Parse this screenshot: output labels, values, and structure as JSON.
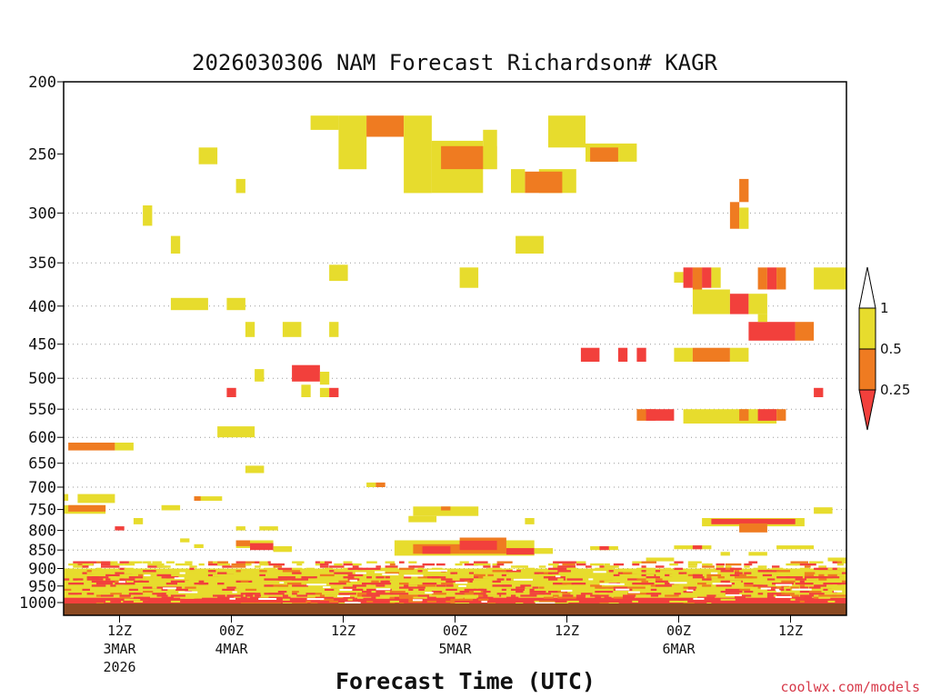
{
  "chart_data": {
    "type": "heatmap",
    "title": "2026030306 NAM Forecast Richardson# KAGR",
    "xlabel": "Forecast Time (UTC)",
    "ylabel": "",
    "credit": "coolwx.com/models",
    "colors": {
      "ri_025_05": "#ef7b21",
      "ri_05_1": "#e7dc2d",
      "ri_lt_025": "#f2403c",
      "ground": "#8b4a22",
      "credit": "#d73a4a"
    },
    "y_axis": {
      "type": "pressure_hPa",
      "range": [
        1040,
        200
      ],
      "ticks": [
        200,
        250,
        300,
        350,
        400,
        450,
        500,
        550,
        600,
        650,
        700,
        750,
        800,
        850,
        900,
        950,
        1000
      ],
      "gridlines": [
        300,
        350,
        400,
        450,
        500,
        550,
        600,
        650,
        700,
        750,
        800,
        850,
        900,
        950,
        1000
      ]
    },
    "x_axis": {
      "unit": "forecast_hour",
      "range": [
        0,
        84
      ],
      "ticks": [
        {
          "hour": 6,
          "label": "12Z",
          "date": "3MAR",
          "year": "2026"
        },
        {
          "hour": 18,
          "label": "00Z",
          "date": "4MAR",
          "year": ""
        },
        {
          "hour": 30,
          "label": "12Z",
          "date": "",
          "year": ""
        },
        {
          "hour": 42,
          "label": "00Z",
          "date": "5MAR",
          "year": ""
        },
        {
          "hour": 54,
          "label": "12Z",
          "date": "",
          "year": ""
        },
        {
          "hour": 66,
          "label": "00Z",
          "date": "6MAR",
          "year": ""
        },
        {
          "hour": 78,
          "label": "12Z",
          "date": "",
          "year": ""
        }
      ]
    },
    "legend": {
      "entries": [
        "1",
        "0.5",
        "0.25"
      ],
      "meaning": "Richardson number categories"
    },
    "patches": [
      {
        "cat": "y",
        "h0": 26.5,
        "h1": 29.5,
        "p0": 222,
        "p1": 232
      },
      {
        "cat": "y",
        "h0": 29.5,
        "h1": 32.5,
        "p0": 222,
        "p1": 262
      },
      {
        "cat": "o",
        "h0": 32.5,
        "h1": 36.5,
        "p0": 222,
        "p1": 237
      },
      {
        "cat": "y",
        "h0": 36.5,
        "h1": 39.5,
        "p0": 222,
        "p1": 282
      },
      {
        "cat": "y",
        "h0": 39.5,
        "h1": 45,
        "p0": 240,
        "p1": 282
      },
      {
        "cat": "o",
        "h0": 40.5,
        "h1": 46.5,
        "p0": 244,
        "p1": 262
      },
      {
        "cat": "y",
        "h0": 45,
        "h1": 46.5,
        "p0": 232,
        "p1": 262
      },
      {
        "cat": "y",
        "h0": 52,
        "h1": 56,
        "p0": 222,
        "p1": 245
      },
      {
        "cat": "y",
        "h0": 51,
        "h1": 55,
        "p0": 262,
        "p1": 282
      },
      {
        "cat": "o",
        "h0": 49.5,
        "h1": 53.5,
        "p0": 264,
        "p1": 282
      },
      {
        "cat": "y",
        "h0": 48,
        "h1": 49.5,
        "p0": 262,
        "p1": 282
      },
      {
        "cat": "y",
        "h0": 56,
        "h1": 61.5,
        "p0": 242,
        "p1": 256
      },
      {
        "cat": "o",
        "h0": 56.5,
        "h1": 59.5,
        "p0": 245,
        "p1": 256
      },
      {
        "cat": "y",
        "h0": 14.5,
        "h1": 16.5,
        "p0": 245,
        "p1": 258
      },
      {
        "cat": "y",
        "h0": 18.5,
        "h1": 19.5,
        "p0": 270,
        "p1": 282
      },
      {
        "cat": "y",
        "h0": 8.5,
        "h1": 9.5,
        "p0": 293,
        "p1": 312
      },
      {
        "cat": "y",
        "h0": 11.5,
        "h1": 12.5,
        "p0": 322,
        "p1": 340
      },
      {
        "cat": "y",
        "h0": 48.5,
        "h1": 51.5,
        "p0": 322,
        "p1": 340
      },
      {
        "cat": "y",
        "h0": 28.5,
        "h1": 30.5,
        "p0": 352,
        "p1": 370
      },
      {
        "cat": "y",
        "h0": 42.5,
        "h1": 44.5,
        "p0": 355,
        "p1": 378
      },
      {
        "cat": "y",
        "h0": 11.5,
        "h1": 15.5,
        "p0": 390,
        "p1": 405
      },
      {
        "cat": "y",
        "h0": 17.5,
        "h1": 19.5,
        "p0": 390,
        "p1": 405
      },
      {
        "cat": "y",
        "h0": 19.5,
        "h1": 20.5,
        "p0": 420,
        "p1": 440
      },
      {
        "cat": "y",
        "h0": 23.5,
        "h1": 25.5,
        "p0": 420,
        "p1": 440
      },
      {
        "cat": "y",
        "h0": 28.5,
        "h1": 29.5,
        "p0": 420,
        "p1": 440
      },
      {
        "cat": "y",
        "h0": 20.5,
        "h1": 21.5,
        "p0": 486,
        "p1": 505
      },
      {
        "cat": "r",
        "h0": 24.5,
        "h1": 27.5,
        "p0": 480,
        "p1": 505
      },
      {
        "cat": "y",
        "h0": 25.5,
        "h1": 26.5,
        "p0": 510,
        "p1": 530
      },
      {
        "cat": "y",
        "h0": 27.5,
        "h1": 28.5,
        "p0": 490,
        "p1": 510
      },
      {
        "cat": "y",
        "h0": 27.5,
        "h1": 28.5,
        "p0": 515,
        "p1": 530
      },
      {
        "cat": "r",
        "h0": 28.5,
        "h1": 29.5,
        "p0": 515,
        "p1": 530
      },
      {
        "cat": "r",
        "h0": 17.5,
        "h1": 18.5,
        "p0": 515,
        "p1": 530
      },
      {
        "cat": "y",
        "h0": 16.5,
        "h1": 20.5,
        "p0": 580,
        "p1": 600
      },
      {
        "cat": "o",
        "h0": 0.5,
        "h1": 5.5,
        "p0": 610,
        "p1": 625
      },
      {
        "cat": "y",
        "h0": 5.5,
        "h1": 7.5,
        "p0": 610,
        "p1": 625
      },
      {
        "cat": "y",
        "h0": 19.5,
        "h1": 21.5,
        "p0": 655,
        "p1": 670
      },
      {
        "cat": "y",
        "h0": 32.5,
        "h1": 33.5,
        "p0": 690,
        "p1": 700
      },
      {
        "cat": "o",
        "h0": 33.5,
        "h1": 34.5,
        "p0": 690,
        "p1": 700
      },
      {
        "cat": "y",
        "h0": 0,
        "h1": 0.5,
        "p0": 715,
        "p1": 730
      },
      {
        "cat": "y",
        "h0": 1.5,
        "h1": 5.5,
        "p0": 715,
        "p1": 735
      },
      {
        "cat": "y",
        "h0": 0,
        "h1": 4.5,
        "p0": 740,
        "p1": 760
      },
      {
        "cat": "o",
        "h0": 0.5,
        "h1": 4.5,
        "p0": 740,
        "p1": 755
      },
      {
        "cat": "y",
        "h0": 14,
        "h1": 17,
        "p0": 720,
        "p1": 730
      },
      {
        "cat": "o",
        "h0": 14,
        "h1": 14.7,
        "p0": 720,
        "p1": 730
      },
      {
        "cat": "y",
        "h0": 10.5,
        "h1": 12.5,
        "p0": 740,
        "p1": 752
      },
      {
        "cat": "y",
        "h0": 7.5,
        "h1": 8.5,
        "p0": 770,
        "p1": 785
      },
      {
        "cat": "r",
        "h0": 5.5,
        "h1": 6.5,
        "p0": 790,
        "p1": 800
      },
      {
        "cat": "y",
        "h0": 37.5,
        "h1": 44.5,
        "p0": 743,
        "p1": 765
      },
      {
        "cat": "o",
        "h0": 40.5,
        "h1": 41.5,
        "p0": 743,
        "p1": 752
      },
      {
        "cat": "y",
        "h0": 37,
        "h1": 40,
        "p0": 765,
        "p1": 780
      },
      {
        "cat": "y",
        "h0": 49.5,
        "h1": 50.5,
        "p0": 770,
        "p1": 785
      },
      {
        "cat": "y",
        "h0": 80.5,
        "h1": 82.5,
        "p0": 745,
        "p1": 760
      },
      {
        "cat": "y",
        "h0": 68.5,
        "h1": 79.5,
        "p0": 770,
        "p1": 790
      },
      {
        "cat": "r",
        "h0": 69.5,
        "h1": 78.5,
        "p0": 772,
        "p1": 785
      },
      {
        "cat": "o",
        "h0": 72.5,
        "h1": 75.5,
        "p0": 783,
        "p1": 805
      },
      {
        "cat": "y",
        "h0": 66.5,
        "h1": 76.5,
        "p0": 550,
        "p1": 575
      },
      {
        "cat": "o",
        "h0": 61.5,
        "h1": 63.5,
        "p0": 550,
        "p1": 570
      },
      {
        "cat": "r",
        "h0": 62.5,
        "h1": 65.5,
        "p0": 550,
        "p1": 570
      },
      {
        "cat": "o",
        "h0": 72.5,
        "h1": 73.5,
        "p0": 550,
        "p1": 570
      },
      {
        "cat": "r",
        "h0": 74.5,
        "h1": 76.5,
        "p0": 550,
        "p1": 570
      },
      {
        "cat": "o",
        "h0": 76.5,
        "h1": 77.5,
        "p0": 550,
        "p1": 570
      },
      {
        "cat": "r",
        "h0": 80.5,
        "h1": 81.5,
        "p0": 515,
        "p1": 530
      },
      {
        "cat": "r",
        "h0": 55.5,
        "h1": 57.5,
        "p0": 455,
        "p1": 475
      },
      {
        "cat": "r",
        "h0": 59.5,
        "h1": 60.5,
        "p0": 455,
        "p1": 475
      },
      {
        "cat": "r",
        "h0": 61.5,
        "h1": 62.5,
        "p0": 455,
        "p1": 475
      },
      {
        "cat": "y",
        "h0": 65.5,
        "h1": 67.5,
        "p0": 455,
        "p1": 475
      },
      {
        "cat": "o",
        "h0": 67.5,
        "h1": 71.5,
        "p0": 455,
        "p1": 475
      },
      {
        "cat": "y",
        "h0": 71.5,
        "h1": 73.5,
        "p0": 455,
        "p1": 475
      },
      {
        "cat": "y",
        "h0": 65.5,
        "h1": 66.5,
        "p0": 360,
        "p1": 372
      },
      {
        "cat": "r",
        "h0": 66.5,
        "h1": 67.5,
        "p0": 355,
        "p1": 378
      },
      {
        "cat": "o",
        "h0": 67.5,
        "h1": 68.5,
        "p0": 355,
        "p1": 380
      },
      {
        "cat": "r",
        "h0": 68.5,
        "h1": 69.5,
        "p0": 355,
        "p1": 378
      },
      {
        "cat": "y",
        "h0": 69.5,
        "h1": 70.5,
        "p0": 355,
        "p1": 378
      },
      {
        "cat": "y",
        "h0": 67.5,
        "h1": 71.5,
        "p0": 380,
        "p1": 410
      },
      {
        "cat": "r",
        "h0": 71.5,
        "h1": 73.5,
        "p0": 385,
        "p1": 410
      },
      {
        "cat": "y",
        "h0": 73.5,
        "h1": 75.5,
        "p0": 385,
        "p1": 410
      },
      {
        "cat": "o",
        "h0": 74.5,
        "h1": 75.5,
        "p0": 355,
        "p1": 380
      },
      {
        "cat": "r",
        "h0": 75.5,
        "h1": 76.5,
        "p0": 355,
        "p1": 380
      },
      {
        "cat": "o",
        "h0": 76.5,
        "h1": 77.5,
        "p0": 355,
        "p1": 380
      },
      {
        "cat": "y",
        "h0": 80.5,
        "h1": 84,
        "p0": 355,
        "p1": 380
      },
      {
        "cat": "r",
        "h0": 73.5,
        "h1": 78.5,
        "p0": 420,
        "p1": 445
      },
      {
        "cat": "o",
        "h0": 78.5,
        "h1": 80.5,
        "p0": 420,
        "p1": 445
      },
      {
        "cat": "y",
        "h0": 74.5,
        "h1": 75.5,
        "p0": 410,
        "p1": 420
      },
      {
        "cat": "o",
        "h0": 72.5,
        "h1": 73.5,
        "p0": 270,
        "p1": 290
      },
      {
        "cat": "o",
        "h0": 71.5,
        "h1": 72.5,
        "p0": 290,
        "p1": 315
      },
      {
        "cat": "y",
        "h0": 72.5,
        "h1": 73.5,
        "p0": 295,
        "p1": 315
      },
      {
        "cat": "y",
        "h0": 18.5,
        "h1": 19.5,
        "p0": 790,
        "p1": 800
      },
      {
        "cat": "y",
        "h0": 21,
        "h1": 23,
        "p0": 790,
        "p1": 800
      },
      {
        "cat": "y",
        "h0": 12.5,
        "h1": 13.5,
        "p0": 820,
        "p1": 830
      },
      {
        "cat": "y",
        "h0": 14,
        "h1": 15,
        "p0": 835,
        "p1": 845
      },
      {
        "cat": "y",
        "h0": 18.5,
        "h1": 22.5,
        "p0": 825,
        "p1": 845
      },
      {
        "cat": "o",
        "h0": 18.5,
        "h1": 20,
        "p0": 825,
        "p1": 840
      },
      {
        "cat": "r",
        "h0": 20,
        "h1": 22.5,
        "p0": 832,
        "p1": 850
      },
      {
        "cat": "y",
        "h0": 22.5,
        "h1": 24.5,
        "p0": 840,
        "p1": 855
      },
      {
        "cat": "y",
        "h0": 35.5,
        "h1": 50.5,
        "p0": 825,
        "p1": 865
      },
      {
        "cat": "o",
        "h0": 37.5,
        "h1": 42.5,
        "p0": 835,
        "p1": 860
      },
      {
        "cat": "r",
        "h0": 38.5,
        "h1": 41.5,
        "p0": 840,
        "p1": 860
      },
      {
        "cat": "o",
        "h0": 42.5,
        "h1": 47.5,
        "p0": 818,
        "p1": 860
      },
      {
        "cat": "r",
        "h0": 42.5,
        "h1": 46.5,
        "p0": 826,
        "p1": 850
      },
      {
        "cat": "r",
        "h0": 47.5,
        "h1": 50.5,
        "p0": 845,
        "p1": 862
      },
      {
        "cat": "y",
        "h0": 50.5,
        "h1": 52.5,
        "p0": 845,
        "p1": 860
      },
      {
        "cat": "y",
        "h0": 56.5,
        "h1": 59.5,
        "p0": 840,
        "p1": 850
      },
      {
        "cat": "r",
        "h0": 57.5,
        "h1": 58.5,
        "p0": 840,
        "p1": 850
      },
      {
        "cat": "y",
        "h0": 65.5,
        "h1": 69.5,
        "p0": 838,
        "p1": 848
      },
      {
        "cat": "r",
        "h0": 67.5,
        "h1": 68.5,
        "p0": 838,
        "p1": 848
      },
      {
        "cat": "y",
        "h0": 76.5,
        "h1": 80.5,
        "p0": 838,
        "p1": 848
      },
      {
        "cat": "y",
        "h0": 70.5,
        "h1": 71.5,
        "p0": 855,
        "p1": 865
      },
      {
        "cat": "y",
        "h0": 73.5,
        "h1": 75.5,
        "p0": 855,
        "p1": 865
      },
      {
        "cat": "y",
        "h0": 62.5,
        "h1": 65.5,
        "p0": 870,
        "p1": 880
      },
      {
        "cat": "y",
        "h0": 82,
        "h1": 84,
        "p0": 870,
        "p1": 880
      },
      {
        "cat": "y",
        "h0": 0,
        "h1": 84,
        "p0": 900,
        "p1": 1030
      },
      {
        "cat": "r",
        "h0": 0,
        "h1": 84,
        "p0": 985,
        "p1": 1030
      }
    ],
    "noise_seed": 7,
    "noise_band": [
      880,
      1025
    ]
  }
}
